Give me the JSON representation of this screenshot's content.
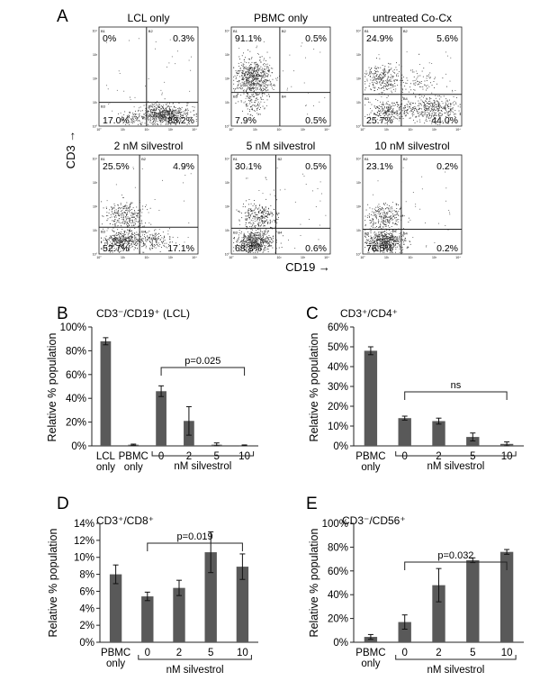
{
  "figure": {
    "panel_a_letter": "A",
    "flow_xlabel": "CD19 →",
    "flow_ylabel": "CD3 →",
    "flow_tick_labels": [
      "10°",
      "10¹",
      "10²",
      "10³",
      "10⁴"
    ],
    "flow_quadrant_ids": [
      "B1",
      "B2",
      "B3",
      "B4"
    ],
    "flow_plots": [
      {
        "title": "LCL only",
        "q": [
          "0%",
          "0.3%",
          "17.0%",
          "83.2%"
        ]
      },
      {
        "title": "PBMC only",
        "q": [
          "91.1%",
          "0.5%",
          "7.9%",
          "0.5%"
        ]
      },
      {
        "title": "untreated  Co-Cx",
        "q": [
          "24.9%",
          "5.6%",
          "25.7%",
          "44.0%"
        ]
      },
      {
        "title": "2 nM silvestrol",
        "q": [
          "25.5%",
          "4.9%",
          "52.7%",
          "17.1%"
        ]
      },
      {
        "title": "5 nM silvestrol",
        "q": [
          "30.1%",
          "0.5%",
          "68.8%",
          "0.6%"
        ]
      },
      {
        "title": "10 nM silvestrol",
        "q": [
          "23.1%",
          "0.2%",
          "76.5%",
          "0.2%"
        ]
      }
    ]
  },
  "chart_data": [
    {
      "type": "bar",
      "letter": "B",
      "title": "CD3⁻/CD19⁺  (LCL)",
      "ylabel": "Relative  % population",
      "categories": [
        [
          "LCL",
          "only"
        ],
        [
          "PBMC",
          "only"
        ],
        [
          "0"
        ],
        [
          "2"
        ],
        [
          "5"
        ],
        [
          "10"
        ]
      ],
      "values": [
        88,
        1,
        46,
        21,
        1,
        0.5
      ],
      "errors": [
        3,
        0.5,
        4.5,
        12,
        1.5,
        0.3
      ],
      "yticks": [
        "0%",
        "20%",
        "40%",
        "60%",
        "80%",
        "100%"
      ],
      "ylim": [
        0,
        100
      ],
      "group_label": "nM silvestrol",
      "group_span": [
        2,
        5
      ],
      "sig": {
        "label": "p=0.025",
        "from": 2,
        "to": 5
      },
      "bar_color": "#595959"
    },
    {
      "type": "bar",
      "letter": "C",
      "title": "CD3⁺/CD4⁺",
      "ylabel": "Relative  % population",
      "categories": [
        [
          "PBMC",
          "only"
        ],
        [
          "0"
        ],
        [
          "2"
        ],
        [
          "5"
        ],
        [
          "10"
        ]
      ],
      "values": [
        48,
        14,
        12.5,
        4.5,
        1
      ],
      "errors": [
        2,
        1,
        1.5,
        2,
        1
      ],
      "yticks": [
        "0%",
        "10%",
        "20%",
        "30%",
        "40%",
        "50%",
        "60%"
      ],
      "ylim": [
        0,
        60
      ],
      "group_label": "nM silvestrol",
      "group_span": [
        1,
        4
      ],
      "sig": {
        "label": "ns",
        "from": 1,
        "to": 4
      },
      "bar_color": "#595959"
    },
    {
      "type": "bar",
      "letter": "D",
      "title": "CD3⁺/CD8⁺",
      "ylabel": "Relative  % population",
      "categories": [
        [
          "PBMC",
          "only"
        ],
        [
          "0"
        ],
        [
          "2"
        ],
        [
          "5"
        ],
        [
          "10"
        ]
      ],
      "values": [
        8,
        5.4,
        6.4,
        10.6,
        8.9
      ],
      "errors": [
        1.1,
        0.5,
        0.9,
        2.4,
        1.5
      ],
      "yticks": [
        "0%",
        "2%",
        "4%",
        "6%",
        "8%",
        "10%",
        "12%",
        "14%"
      ],
      "ylim": [
        0,
        14
      ],
      "group_label": "nM silvestrol",
      "group_span": [
        1,
        4
      ],
      "sig": {
        "label": "p=0.019",
        "from": 1,
        "to": 4
      },
      "bar_color": "#595959"
    },
    {
      "type": "bar",
      "letter": "E",
      "title": "CD3⁻/CD56⁺",
      "ylabel": "Relative  % population",
      "categories": [
        [
          "PBMC",
          "only"
        ],
        [
          "0"
        ],
        [
          "2"
        ],
        [
          "5"
        ],
        [
          "10"
        ]
      ],
      "values": [
        4.5,
        17,
        48,
        69,
        76
      ],
      "errors": [
        2,
        6,
        14,
        2,
        2
      ],
      "yticks": [
        "0%",
        "20%",
        "40%",
        "60%",
        "80%",
        "100%"
      ],
      "ylim": [
        0,
        100
      ],
      "group_label": "nM silvestrol",
      "group_span": [
        1,
        4
      ],
      "sig": {
        "label": "p=0.032",
        "from": 1,
        "to": 4
      },
      "bar_color": "#595959"
    }
  ]
}
